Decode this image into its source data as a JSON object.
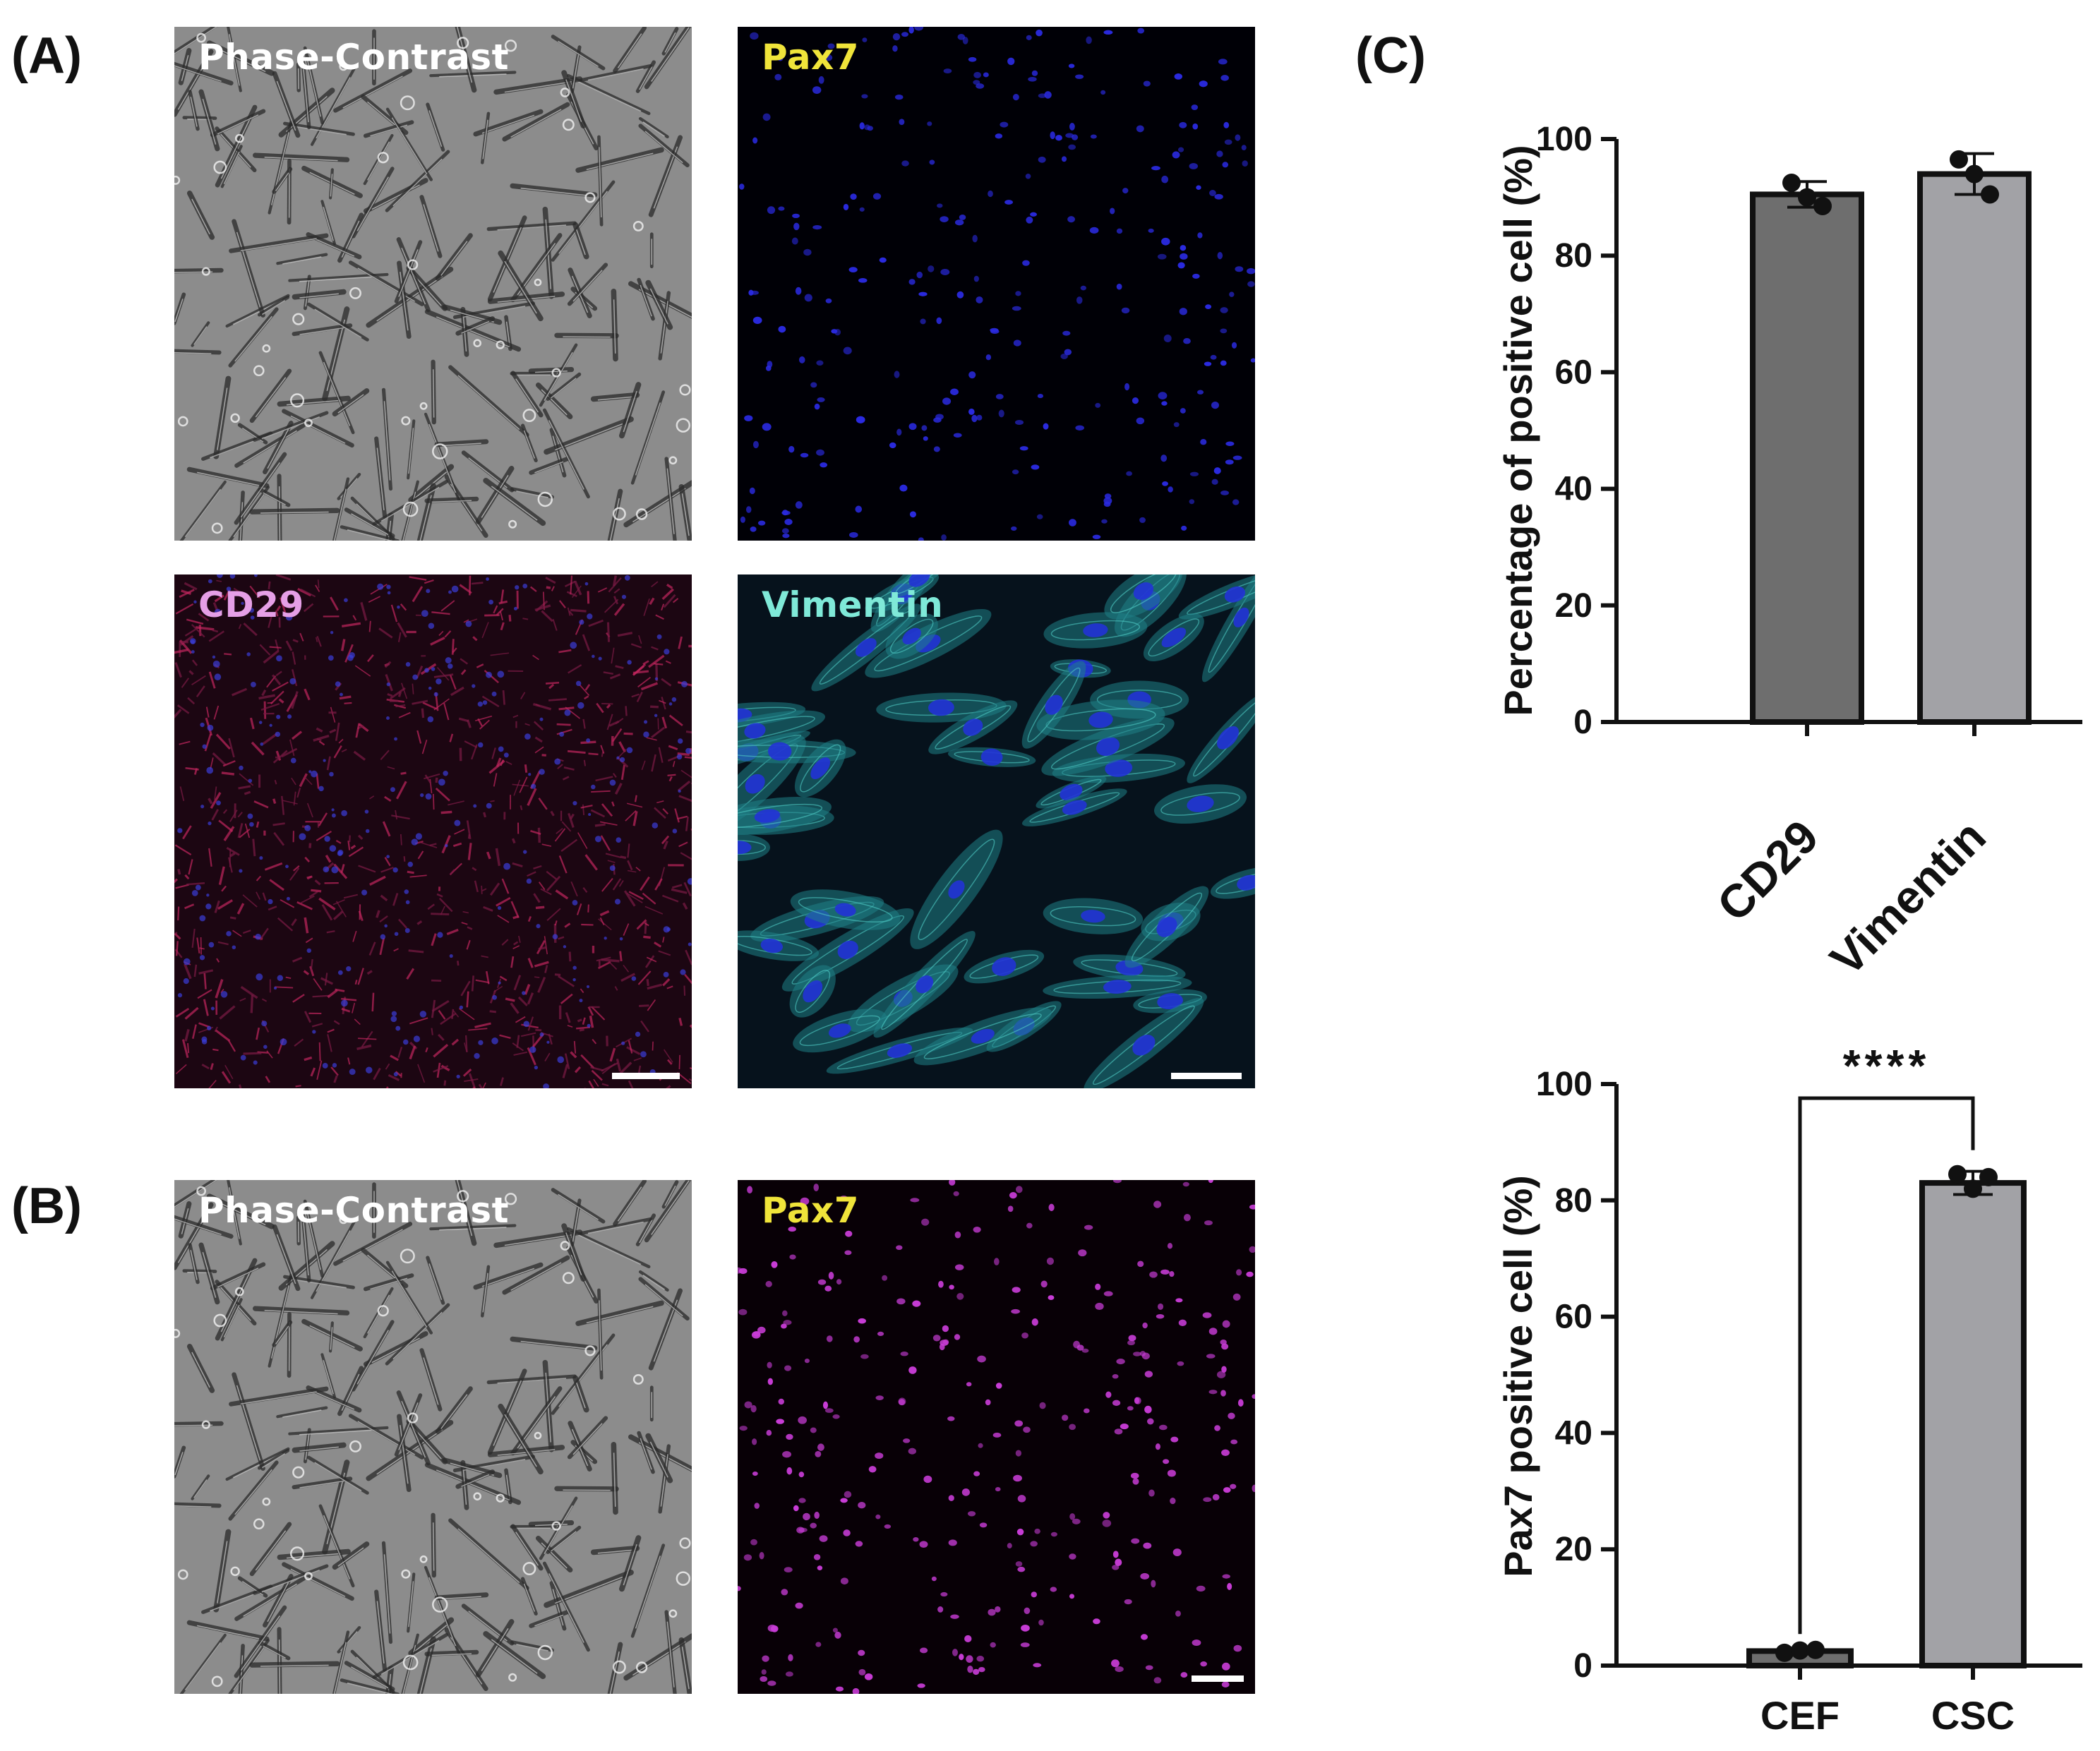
{
  "panels": {
    "A": {
      "letter": "(A)",
      "tiles": [
        {
          "label": "Phase-Contrast",
          "label_color": "#ffffff",
          "kind": "phase"
        },
        {
          "label": "Pax7",
          "label_color": "#f0e43a",
          "kind": "pax7-blue"
        },
        {
          "label": "CD29",
          "label_color": "#e59fe6",
          "kind": "cd29"
        },
        {
          "label": "Vimentin",
          "label_color": "#7fe9d8",
          "kind": "vimentin"
        }
      ]
    },
    "B": {
      "letter": "(B)",
      "tiles": [
        {
          "label": "Phase-Contrast",
          "label_color": "#ffffff",
          "kind": "phase"
        },
        {
          "label": "Pax7",
          "label_color": "#f0e43a",
          "kind": "pax7-magenta"
        }
      ]
    },
    "C": {
      "letter": "(C)"
    }
  },
  "chart_data": [
    {
      "type": "bar",
      "categories": [
        "CD29",
        "Vimentin"
      ],
      "values": [
        90.5,
        94.0
      ],
      "error": [
        2.2,
        3.5
      ],
      "points": [
        [
          92.5,
          90.0,
          88.5
        ],
        [
          96.5,
          94.0,
          90.5
        ]
      ],
      "bar_colors": [
        "#6e6e6e",
        "#a2a2a6"
      ],
      "ylabel": "Percentage of positive cell  (%)",
      "xlabel": "",
      "ylim": [
        0,
        100
      ],
      "yticks": [
        0,
        20,
        40,
        60,
        80,
        100
      ],
      "tick_labels_rotated": true,
      "significance": ""
    },
    {
      "type": "bar",
      "categories": [
        "CEF",
        "CSC"
      ],
      "values": [
        2.5,
        83.0
      ],
      "error": [
        0.5,
        2.0
      ],
      "points": [
        [
          2.2,
          2.6,
          2.7
        ],
        [
          84.5,
          82.0,
          84.0
        ]
      ],
      "bar_colors": [
        "#6e6e6e",
        "#a2a2a6"
      ],
      "ylabel": "Pax7 positive cell (%)",
      "xlabel": "",
      "ylim": [
        0,
        100
      ],
      "yticks": [
        0,
        20,
        40,
        60,
        80,
        100
      ],
      "tick_labels_rotated": false,
      "significance": "****"
    }
  ]
}
